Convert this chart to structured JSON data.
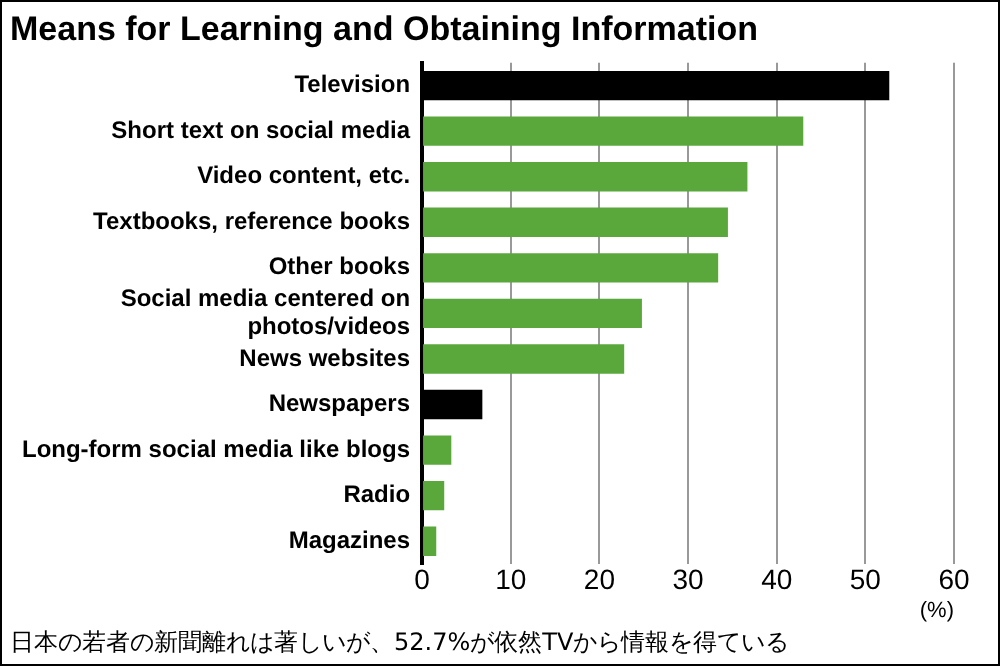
{
  "chart_data": {
    "type": "bar",
    "orientation": "horizontal",
    "title": "Means for Learning and Obtaining Information",
    "categories": [
      "Television",
      "Short text on social media",
      "Video content, etc.",
      "Textbooks, reference books",
      "Other books",
      "Social media centered on photos/videos",
      "News websites",
      "Newspapers",
      "Long-form social media like blogs",
      "Radio",
      "Magazines"
    ],
    "values": [
      52.7,
      43,
      36.7,
      34.5,
      33.4,
      24.8,
      22.8,
      6.8,
      3.3,
      2.5,
      1.6
    ],
    "colors": [
      "#000000",
      "#5aa83c",
      "#5aa83c",
      "#5aa83c",
      "#5aa83c",
      "#5aa83c",
      "#5aa83c",
      "#000000",
      "#5aa83c",
      "#5aa83c",
      "#5aa83c"
    ],
    "xlim": [
      0,
      60
    ],
    "xticks": [
      0,
      10,
      20,
      30,
      40,
      50,
      60
    ],
    "xlabel": "(%)",
    "grid": "x",
    "legend": false,
    "annotations": [
      "日本の若者の新聞離れは著しいが、52.7%が依然TVから情報を得ている"
    ]
  }
}
